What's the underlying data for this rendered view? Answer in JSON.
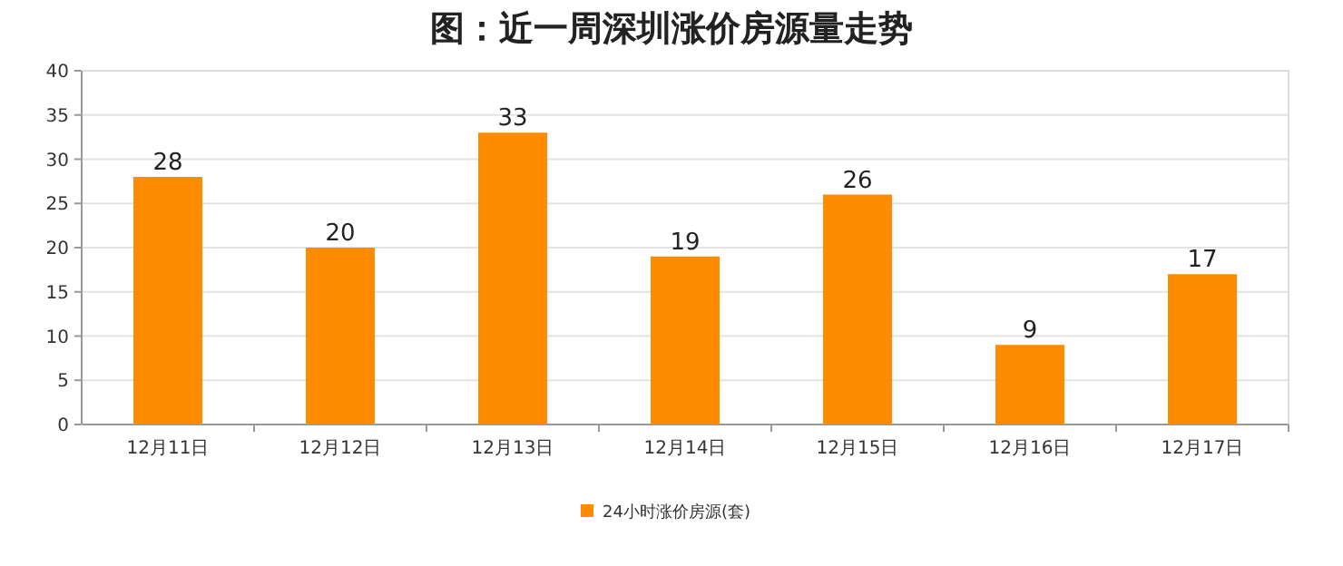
{
  "chart_data": {
    "type": "bar",
    "title": "图：近一周深圳涨价房源量走势",
    "categories": [
      "12月11日",
      "12月12日",
      "12月13日",
      "12月14日",
      "12月15日",
      "12月16日",
      "12月17日"
    ],
    "series": [
      {
        "name": "24小时涨价房源(套)",
        "color": "#ff8c00",
        "values": [
          28,
          20,
          33,
          19,
          26,
          9,
          17
        ]
      }
    ],
    "ylim": [
      0,
      40
    ],
    "yticks": [
      0,
      5,
      10,
      15,
      20,
      25,
      30,
      35,
      40
    ],
    "grid": "y",
    "legend": "bottom",
    "data_labels": true
  }
}
